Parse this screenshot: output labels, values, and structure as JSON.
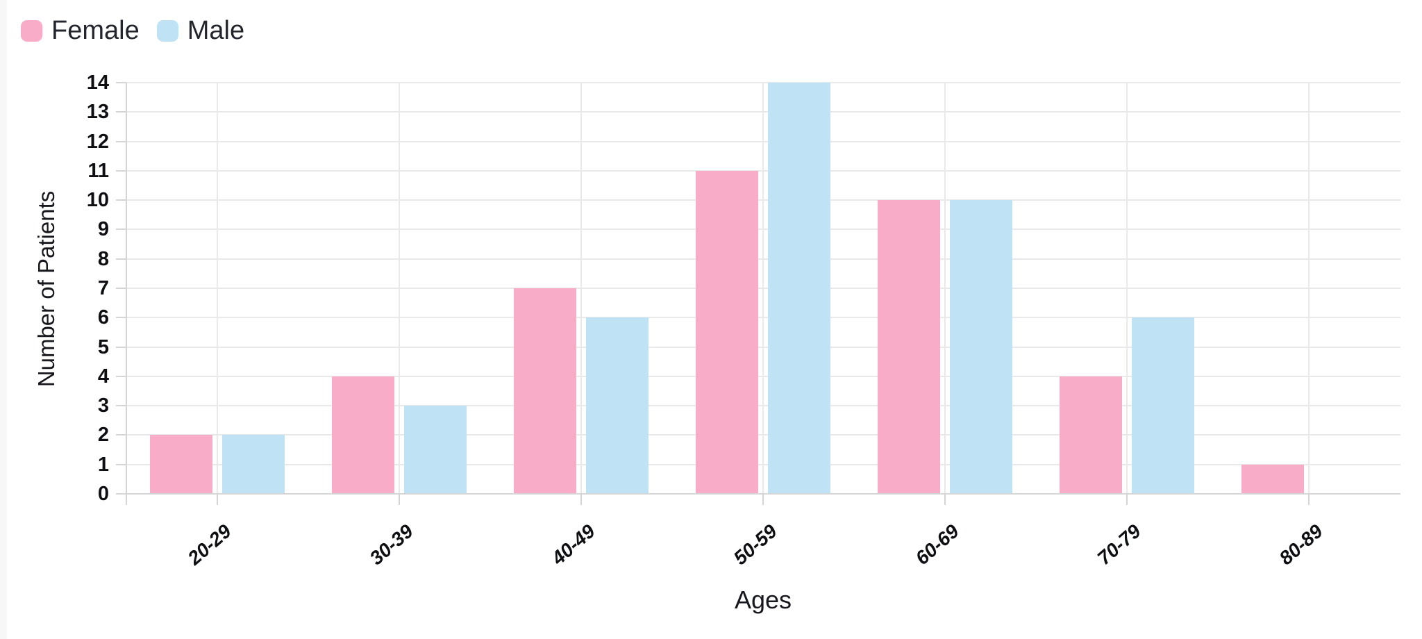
{
  "chart_data": {
    "type": "bar",
    "title": "",
    "categories": [
      "20-29",
      "30-39",
      "40-49",
      "50-59",
      "60-69",
      "70-79",
      "80-89"
    ],
    "series": [
      {
        "name": "Female",
        "color": "#f9acc8",
        "values": [
          2,
          4,
          7,
          11,
          10,
          4,
          1
        ]
      },
      {
        "name": "Male",
        "color": "#bfe3f5",
        "values": [
          2,
          3,
          6,
          14,
          10,
          6,
          0
        ]
      }
    ],
    "xlabel": "Ages",
    "ylabel": "Number of Patients",
    "ylim": [
      0,
      14
    ],
    "y_tick_step": 1,
    "grid": {
      "horizontal": true,
      "vertical_at_category_centers": true
    },
    "legend_position": "top-left"
  },
  "colors": {
    "background": "#ffffff",
    "left_strip": "#f7f7f7",
    "grid": "#e9e9e9",
    "axis": "#d5d5d5",
    "tick_text": "#0e0f12",
    "title_text": "#16181d",
    "legend_text": "#23252c"
  }
}
